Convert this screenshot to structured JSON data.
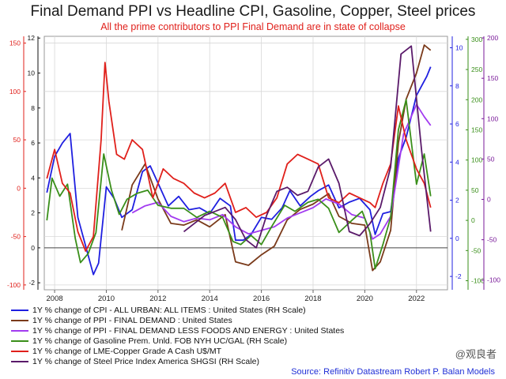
{
  "chart_data": {
    "type": "line",
    "title": "Final Demand PPI vs Headline CPI, Gasoline, Copper, Steel prices",
    "subtitle": "All the prime contributors to PPI Final Demand are in state of collapse",
    "x_ticks": [
      "2008",
      "2010",
      "2012",
      "2014",
      "2016",
      "2018",
      "2020",
      "2022"
    ],
    "xlim": [
      2007.6,
      2023.2
    ],
    "axes": {
      "left_red": {
        "ticks": [
          -100,
          -50,
          0,
          50,
          100,
          150
        ],
        "ylim": [
          -105,
          157
        ],
        "color": "#e0201b"
      },
      "left_black": {
        "ticks": [
          -2,
          0,
          2,
          4,
          6,
          8,
          10,
          12
        ],
        "ylim": [
          -2.4,
          12.1
        ],
        "color": "#111111"
      },
      "right_blue": {
        "ticks": [
          -2,
          0,
          2,
          4,
          6,
          8,
          10
        ],
        "ylim": [
          -2.7,
          10.6
        ],
        "color": "#2020e0"
      },
      "right_green": {
        "ticks": [
          -100,
          -50,
          0,
          50,
          100,
          150,
          200,
          250,
          300
        ],
        "ylim": [
          -115,
          305
        ],
        "color": "#3a8f1a"
      },
      "right_purple": {
        "ticks": [
          -100,
          -50,
          0,
          50,
          100,
          150,
          200
        ],
        "ylim": [
          -112,
          202
        ],
        "color": "#7a1a9a"
      }
    },
    "series": [
      {
        "name": "1Y % change of CPI - ALL URBAN: ALL ITEMS : United States (RH Scale)",
        "color": "#1f1fe0",
        "axis": "right_blue",
        "x": [
          2007.7,
          2008.0,
          2008.3,
          2008.6,
          2008.9,
          2009.2,
          2009.5,
          2009.7,
          2010.0,
          2010.3,
          2010.6,
          2011.0,
          2011.4,
          2011.7,
          2012.0,
          2012.4,
          2012.8,
          2013.2,
          2013.6,
          2014.0,
          2014.4,
          2014.8,
          2015.0,
          2015.3,
          2015.6,
          2016.0,
          2016.4,
          2016.8,
          2017.1,
          2017.5,
          2017.9,
          2018.2,
          2018.6,
          2019.0,
          2019.4,
          2019.8,
          2020.2,
          2020.4,
          2020.7,
          2021.0,
          2021.3,
          2021.6,
          2022.0,
          2022.4,
          2022.55
        ],
        "y": [
          2.4,
          4.3,
          5.0,
          5.5,
          1.1,
          -0.4,
          -1.9,
          -1.3,
          2.7,
          2.1,
          1.1,
          1.5,
          3.5,
          3.8,
          2.9,
          1.7,
          2.2,
          1.5,
          1.6,
          1.3,
          2.1,
          1.7,
          -0.1,
          -0.1,
          0.2,
          1.1,
          1.0,
          1.6,
          2.5,
          1.7,
          2.2,
          2.5,
          2.8,
          1.6,
          1.9,
          2.1,
          1.5,
          0.2,
          1.3,
          1.4,
          4.2,
          5.3,
          7.5,
          8.5,
          9.0
        ]
      },
      {
        "name": "1Y % change of PPI - FINAL DEMAND : United States",
        "color": "#7a3a1a",
        "axis": "left_black",
        "x": [
          2010.6,
          2011.0,
          2011.5,
          2012.0,
          2012.5,
          2013.0,
          2013.5,
          2014.0,
          2014.6,
          2015.0,
          2015.5,
          2016.0,
          2016.5,
          2017.0,
          2017.5,
          2018.0,
          2018.6,
          2019.0,
          2019.5,
          2020.0,
          2020.3,
          2020.6,
          2021.0,
          2021.3,
          2021.6,
          2022.0,
          2022.3,
          2022.55
        ],
        "y": [
          1.0,
          3.6,
          4.8,
          2.8,
          1.4,
          1.3,
          1.6,
          1.2,
          1.9,
          -0.8,
          -1.0,
          -0.4,
          0.1,
          1.6,
          2.2,
          2.5,
          3.1,
          1.8,
          1.4,
          1.3,
          -1.3,
          -0.8,
          1.0,
          6.0,
          8.5,
          10.0,
          11.6,
          11.3
        ]
      },
      {
        "name": "1Y % change of PPI - FINAL DEMAND LESS FOODS AND ENERGY : United States",
        "color": "#a23bf0",
        "axis": "left_black",
        "x": [
          2011.0,
          2011.5,
          2012.0,
          2012.5,
          2013.0,
          2013.5,
          2014.0,
          2014.5,
          2015.0,
          2015.5,
          2016.0,
          2016.5,
          2017.0,
          2017.5,
          2018.0,
          2018.5,
          2019.0,
          2019.5,
          2020.0,
          2020.3,
          2020.6,
          2021.0,
          2021.5,
          2022.0,
          2022.3,
          2022.55
        ],
        "y": [
          2.0,
          2.4,
          2.6,
          1.8,
          1.5,
          1.7,
          1.6,
          1.9,
          1.2,
          0.8,
          1.0,
          1.2,
          1.7,
          2.0,
          2.3,
          2.8,
          2.5,
          1.9,
          1.7,
          0.5,
          0.8,
          1.8,
          6.5,
          8.2,
          7.5,
          7.0
        ]
      },
      {
        "name": "1Y % change of Gasoline Prem. Unld. FOB NYH UC/GAL (RH Scale)",
        "color": "#3a8f1a",
        "axis": "right_green",
        "x": [
          2007.7,
          2007.9,
          2008.2,
          2008.5,
          2008.8,
          2009.0,
          2009.3,
          2009.6,
          2009.9,
          2010.2,
          2010.5,
          2010.8,
          2011.2,
          2011.6,
          2012.0,
          2012.5,
          2013.0,
          2013.5,
          2014.0,
          2014.5,
          2014.9,
          2015.2,
          2015.6,
          2016.0,
          2016.4,
          2016.9,
          2017.3,
          2017.8,
          2018.2,
          2018.6,
          2019.0,
          2019.5,
          2019.9,
          2020.2,
          2020.4,
          2020.7,
          2021.0,
          2021.3,
          2021.6,
          2022.0,
          2022.3,
          2022.55
        ],
        "y": [
          0,
          70,
          40,
          60,
          -30,
          -70,
          -55,
          -20,
          110,
          50,
          10,
          35,
          45,
          50,
          25,
          20,
          20,
          5,
          15,
          5,
          -35,
          -40,
          -25,
          -40,
          -10,
          25,
          15,
          30,
          35,
          20,
          -20,
          0,
          15,
          -20,
          -80,
          -40,
          5,
          150,
          200,
          60,
          110,
          40
        ]
      },
      {
        "name": "1Y % change of LME-Copper Grade A Cash U$/MT",
        "color": "#e0201b",
        "axis": "left_red",
        "x": [
          2007.7,
          2008.0,
          2008.3,
          2008.6,
          2008.9,
          2009.2,
          2009.5,
          2009.8,
          2009.95,
          2010.1,
          2010.4,
          2010.7,
          2011.0,
          2011.4,
          2011.8,
          2012.2,
          2012.6,
          2013.0,
          2013.4,
          2013.8,
          2014.2,
          2014.6,
          2015.0,
          2015.4,
          2015.8,
          2016.2,
          2016.6,
          2017.0,
          2017.4,
          2017.8,
          2018.2,
          2018.6,
          2019.0,
          2019.4,
          2019.8,
          2020.2,
          2020.4,
          2020.7,
          2021.0,
          2021.3,
          2021.6,
          2022.0,
          2022.3,
          2022.55
        ],
        "y": [
          10,
          40,
          5,
          -5,
          -45,
          -65,
          -50,
          50,
          130,
          90,
          35,
          30,
          50,
          40,
          -10,
          20,
          10,
          5,
          -5,
          -10,
          -5,
          5,
          -25,
          -20,
          -30,
          -25,
          -10,
          25,
          35,
          30,
          25,
          -10,
          -15,
          -5,
          -10,
          -15,
          -20,
          5,
          25,
          85,
          50,
          20,
          5,
          -20
        ]
      },
      {
        "name": "1Y % change of Steel Price Index America SHGSI (RH Scale)",
        "color": "#5a1a6a",
        "axis": "right_purple",
        "x": [
          2013.0,
          2013.4,
          2013.8,
          2014.2,
          2014.6,
          2015.0,
          2015.4,
          2015.8,
          2016.2,
          2016.6,
          2017.0,
          2017.4,
          2017.8,
          2018.2,
          2018.6,
          2019.0,
          2019.4,
          2019.8,
          2020.2,
          2020.6,
          2021.0,
          2021.4,
          2021.8,
          2022.2,
          2022.55
        ],
        "y": [
          -40,
          -30,
          -20,
          -15,
          -10,
          -25,
          -50,
          -60,
          -20,
          10,
          15,
          5,
          10,
          40,
          50,
          20,
          -40,
          -45,
          -30,
          -10,
          40,
          180,
          190,
          60,
          -40
        ]
      }
    ]
  },
  "legend": {
    "items": [
      {
        "label": "1Y % change of CPI - ALL URBAN: ALL ITEMS : United States (RH Scale)",
        "color": "#1f1fe0"
      },
      {
        "label": "1Y % change of PPI - FINAL DEMAND : United States",
        "color": "#7a3a1a"
      },
      {
        "label": "1Y % change of PPI - FINAL DEMAND LESS FOODS AND ENERGY : United States",
        "color": "#a23bf0"
      },
      {
        "label": "1Y % change of Gasoline Prem. Unld. FOB NYH UC/GAL (RH Scale)",
        "color": "#3a8f1a"
      },
      {
        "label": "1Y % change of LME-Copper Grade A Cash U$/MT",
        "color": "#e0201b"
      },
      {
        "label": "1Y % change of Steel Price Index America SHGSI (RH Scale)",
        "color": "#5a1a6a"
      }
    ]
  },
  "source": "Source: Refinitiv Datastream Robert P. Balan Models",
  "watermark": "@观良者"
}
